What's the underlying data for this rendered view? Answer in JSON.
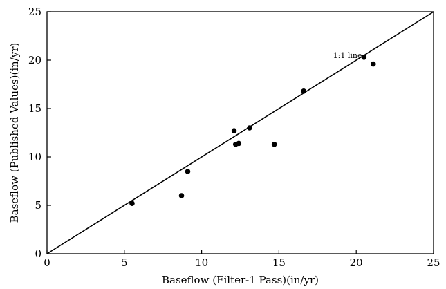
{
  "chart_data": {
    "type": "scatter",
    "title": "",
    "xlabel": "Baseflow (Filter-1 Pass)(in/yr)",
    "ylabel": "Baseflow (Published Values)(in/yr)",
    "xlim": [
      0,
      25
    ],
    "ylim": [
      0,
      25
    ],
    "xticks": [
      0,
      5,
      10,
      15,
      20,
      25
    ],
    "yticks": [
      0,
      5,
      10,
      15,
      20,
      25
    ],
    "grid": false,
    "points": [
      {
        "x": 5.5,
        "y": 5.2
      },
      {
        "x": 8.7,
        "y": 6.0
      },
      {
        "x": 9.1,
        "y": 8.5
      },
      {
        "x": 12.1,
        "y": 12.7
      },
      {
        "x": 12.2,
        "y": 11.3
      },
      {
        "x": 12.4,
        "y": 11.4
      },
      {
        "x": 13.1,
        "y": 13.0
      },
      {
        "x": 14.7,
        "y": 11.3
      },
      {
        "x": 16.6,
        "y": 16.8
      },
      {
        "x": 20.5,
        "y": 20.3
      },
      {
        "x": 21.1,
        "y": 19.6
      }
    ],
    "reference_line": {
      "label": "1:1 line",
      "from": [
        0,
        0
      ],
      "to": [
        25,
        25
      ]
    },
    "annotation_at": {
      "x": 18.5,
      "y": 20.2
    }
  }
}
